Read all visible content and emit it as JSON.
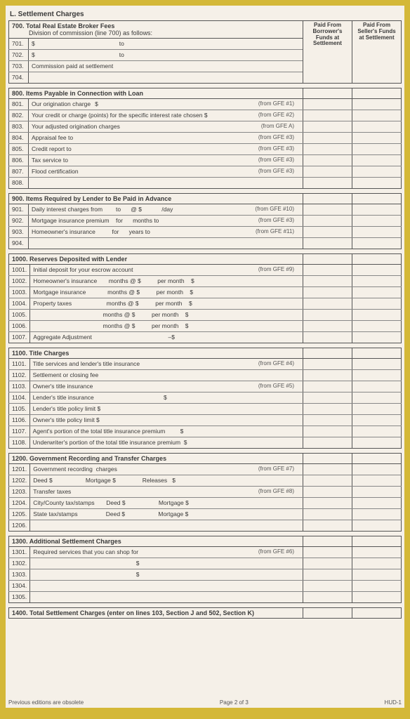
{
  "colors": {
    "border": "#d4b838",
    "page_bg": "#f5f0e8",
    "line": "#888",
    "text": "#3a3a3a"
  },
  "typography": {
    "body_pt": 9,
    "header_pt": 10,
    "small_pt": 8,
    "family": "Arial"
  },
  "page_title": "L. Settlement Charges",
  "col_headers": {
    "borrower": "Paid From Borrower's Funds at Settlement",
    "seller": "Paid From Seller's Funds at Settlement"
  },
  "s700": {
    "header_num": "700.",
    "header_text": "Total Real Estate Broker Fees",
    "subtext": "Division of commission (line 700) as follows:",
    "rows": [
      {
        "num": "701.",
        "text": "$",
        "mid": "to"
      },
      {
        "num": "702.",
        "text": "$",
        "mid": "to"
      },
      {
        "num": "703.",
        "text": "Commission paid at settlement"
      },
      {
        "num": "704.",
        "text": ""
      }
    ]
  },
  "s800": {
    "header_num": "800.",
    "header_text": "Items Payable in Connection with Loan",
    "rows": [
      {
        "num": "801.",
        "text": "Our origination charge",
        "dollar": "$",
        "gfe": "(from GFE #1)"
      },
      {
        "num": "802.",
        "text": "Your credit or charge (points) for the specific interest rate chosen $",
        "gfe": "(from GFE #2)"
      },
      {
        "num": "803.",
        "text": "Your adjusted origination charges",
        "gfe": "(from GFE A)"
      },
      {
        "num": "804.",
        "text": "Appraisal fee to",
        "gfe": "(from GFE #3)"
      },
      {
        "num": "805.",
        "text": "Credit report to",
        "gfe": "(from GFE #3)"
      },
      {
        "num": "806.",
        "text": "Tax service to",
        "gfe": "(from GFE #3)"
      },
      {
        "num": "807.",
        "text": "Flood certification",
        "gfe": "(from GFE #3)"
      },
      {
        "num": "808.",
        "text": ""
      }
    ]
  },
  "s900": {
    "header_num": "900.",
    "header_text": "Items Required by Lender to Be Paid in Advance",
    "rows": [
      {
        "num": "901.",
        "text": "Daily interest charges from        to      @ $            /day",
        "gfe": "(from GFE #10)"
      },
      {
        "num": "902.",
        "text": "Mortgage insurance premium    for      months to",
        "gfe": "(from GFE #3)"
      },
      {
        "num": "903.",
        "text": "Homeowner's insurance          for      years to",
        "gfe": "(from GFE #11)"
      },
      {
        "num": "904.",
        "text": ""
      }
    ]
  },
  "s1000": {
    "header_num": "1000.",
    "header_text": "Reserves Deposited with Lender",
    "rows": [
      {
        "num": "1001.",
        "text": "Initial deposit for your escrow account",
        "gfe": "(from GFE #9)"
      },
      {
        "num": "1002.",
        "text": "Homeowner's insurance       months @ $          per month    $"
      },
      {
        "num": "1003.",
        "text": "Mortgage insurance             months @ $          per month    $"
      },
      {
        "num": "1004.",
        "text": "Property taxes                     months @ $          per month    $"
      },
      {
        "num": "1005.",
        "text": "                                          months @ $          per month    $"
      },
      {
        "num": "1006.",
        "text": "                                          months @ $          per month    $"
      },
      {
        "num": "1007.",
        "text": "Aggregate Adjustment                                              –$"
      }
    ]
  },
  "s1100": {
    "header_num": "1100.",
    "header_text": "Title Charges",
    "rows": [
      {
        "num": "1101.",
        "text": "Title services and lender's title insurance",
        "gfe": "(from GFE #4)"
      },
      {
        "num": "1102.",
        "text": "Settlement or closing fee"
      },
      {
        "num": "1103.",
        "text": "Owner's title insurance",
        "gfe": "(from GFE #5)"
      },
      {
        "num": "1104.",
        "text": "Lender's title insurance                                          $"
      },
      {
        "num": "1105.",
        "text": "Lender's title policy limit $"
      },
      {
        "num": "1106.",
        "text": "Owner's title policy limit $"
      },
      {
        "num": "1107.",
        "text": "Agent's portion of the total title insurance premium         $"
      },
      {
        "num": "1108.",
        "text": "Underwriter's portion of the total title insurance premium  $"
      }
    ]
  },
  "s1200": {
    "header_num": "1200.",
    "header_text": "Government Recording and Transfer Charges",
    "rows": [
      {
        "num": "1201.",
        "text": "Government recording  charges",
        "gfe": "(from GFE #7)"
      },
      {
        "num": "1202.",
        "text": "Deed $                    Mortgage $                Releases   $"
      },
      {
        "num": "1203.",
        "text": "Transfer taxes",
        "gfe": "(from GFE #8)"
      },
      {
        "num": "1204.",
        "text": "City/County tax/stamps       Deed $                    Mortgage $"
      },
      {
        "num": "1205.",
        "text": "State tax/stamps                 Deed $                    Mortgage $"
      },
      {
        "num": "1206.",
        "text": ""
      }
    ]
  },
  "s1300": {
    "header_num": "1300.",
    "header_text": "Additional Settlement Charges",
    "rows": [
      {
        "num": "1301.",
        "text": "Required services that you can shop for",
        "gfe": "(from GFE #6)"
      },
      {
        "num": "1302.",
        "text": "                                                              $"
      },
      {
        "num": "1303.",
        "text": "                                                              $"
      },
      {
        "num": "1304.",
        "text": ""
      },
      {
        "num": "1305.",
        "text": ""
      }
    ]
  },
  "s1400": {
    "header_num": "1400.",
    "header_text": "Total Settlement Charges (enter on lines 103, Section J and 502, Section K)"
  },
  "footer": {
    "left": "Previous editions are obsolete",
    "center": "Page 2 of 3",
    "right": "HUD-1"
  }
}
